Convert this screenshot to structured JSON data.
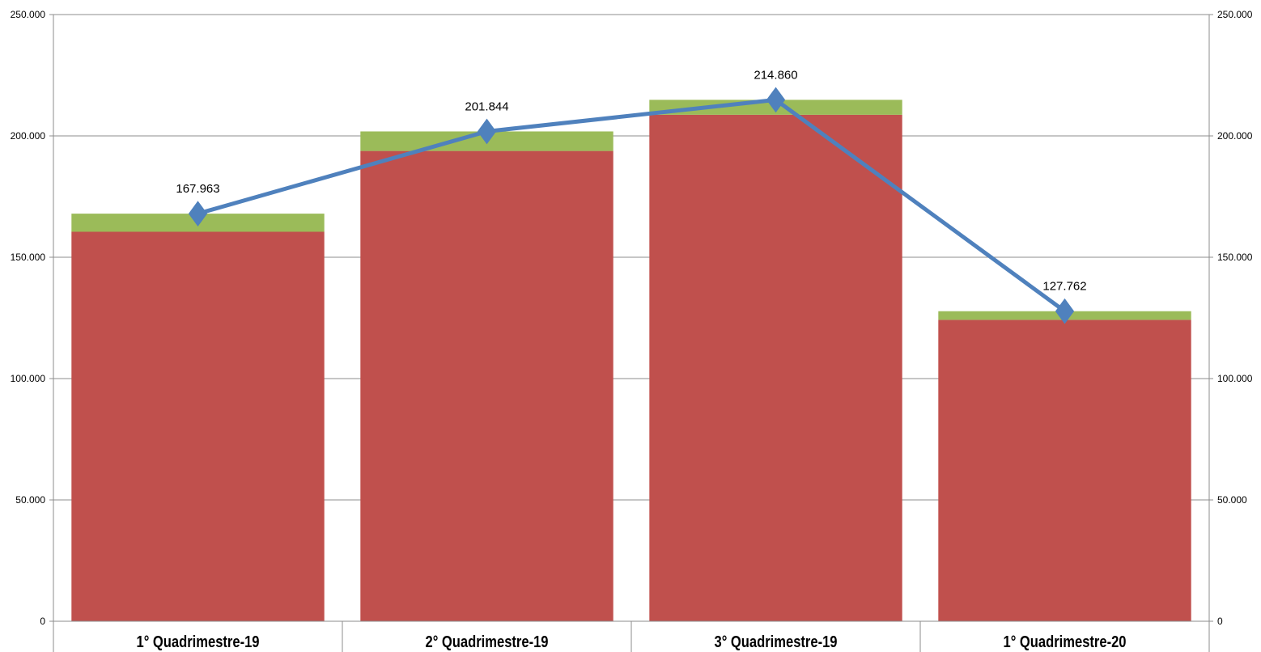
{
  "chart_data": {
    "type": "bar",
    "stacked": true,
    "categories": [
      "1° Quadrimestre-19",
      "2° Quadrimestre-19",
      "3° Quadrimestre-19",
      "1° Quadrimestre-20"
    ],
    "series": [
      {
        "type": "bar",
        "values": [
          160500,
          193800,
          208700,
          124200
        ],
        "color": "#c0504d"
      },
      {
        "type": "bar",
        "values": [
          7463,
          8044,
          6160,
          3562
        ],
        "color": "#9bbb59"
      },
      {
        "type": "line",
        "values": [
          167963,
          201844,
          214860,
          127762
        ],
        "color": "#4f81bd",
        "marker": "diamond"
      }
    ],
    "data_labels": [
      "167.963",
      "201.844",
      "214.860",
      "127.762"
    ],
    "yticks": [
      0,
      50000,
      100000,
      150000,
      200000,
      250000
    ],
    "ytick_labels": [
      "0",
      "50.000",
      "100.000",
      "150.000",
      "200.000",
      "250.000"
    ],
    "ylim": [
      0,
      250000
    ],
    "y2lim": [
      0,
      250000
    ],
    "grid": true,
    "title": "",
    "xlabel": "",
    "ylabel": ""
  }
}
